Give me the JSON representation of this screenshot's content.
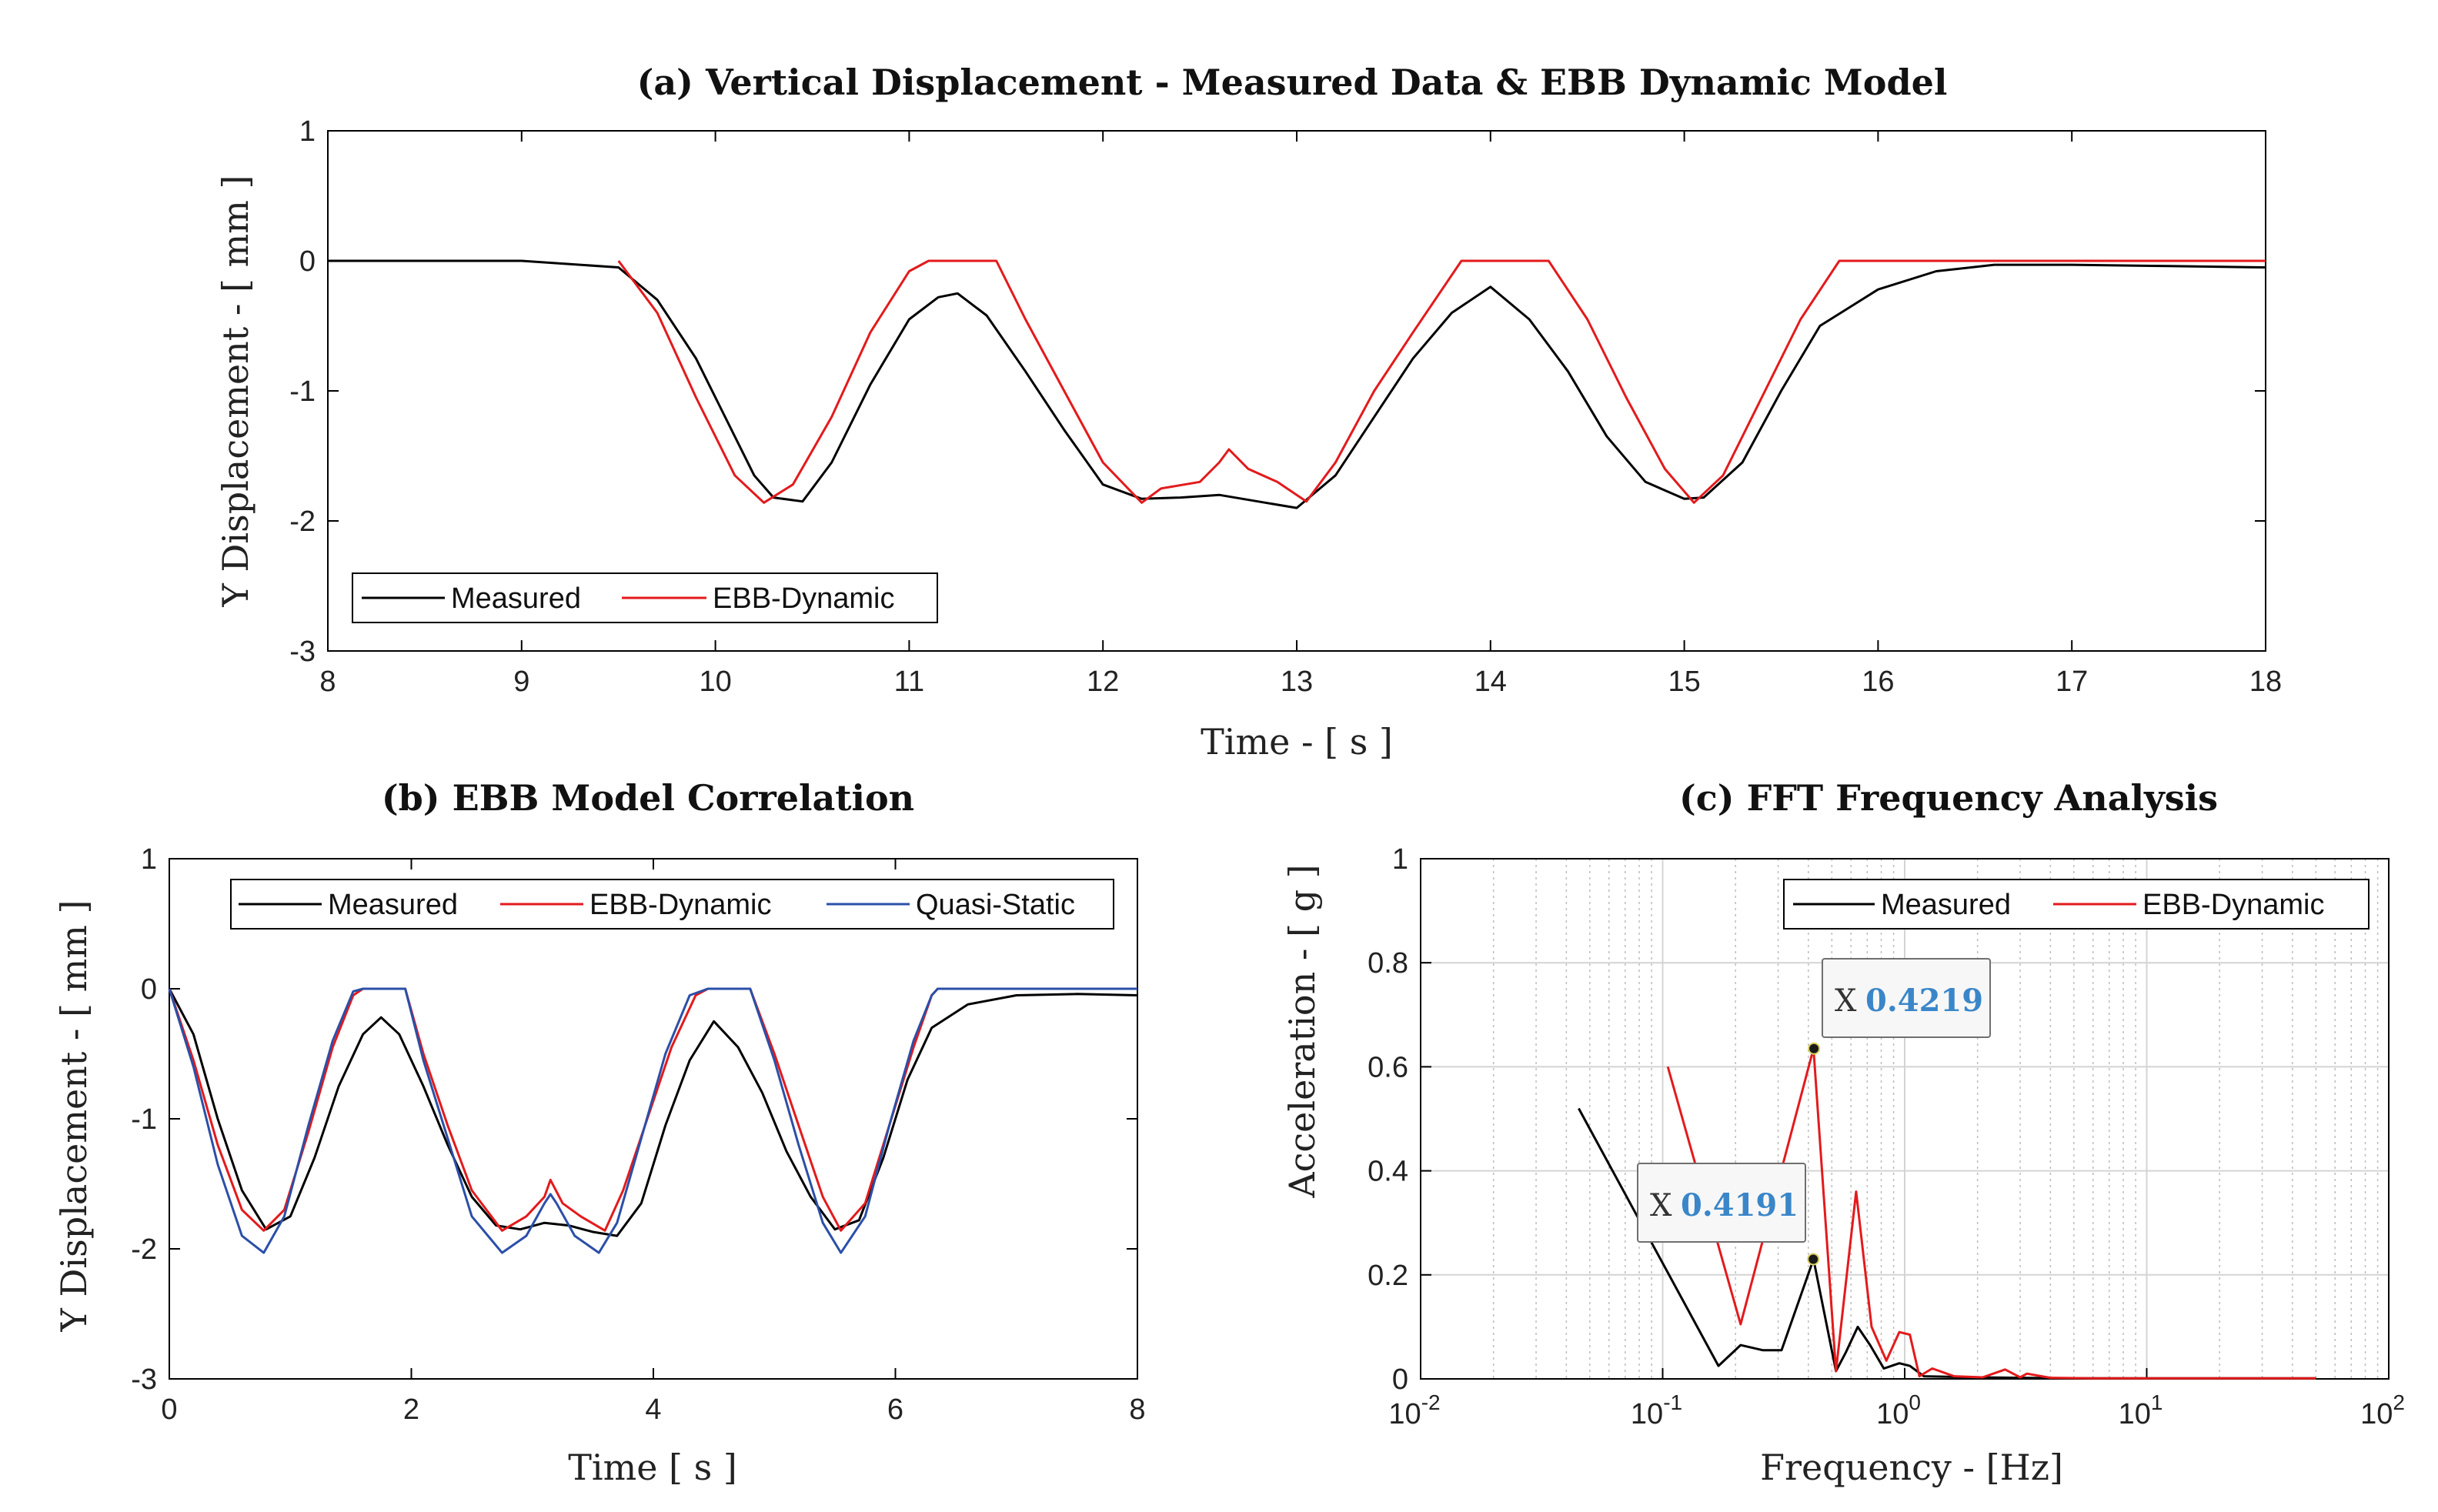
{
  "colors": {
    "measured": "#000000",
    "ebb": "#e31a1c",
    "quasi": "#2b4fa8",
    "datatip_value": "#3a86c8"
  },
  "chart_data": [
    {
      "id": "a",
      "type": "line",
      "title": "(a) Vertical Displacement - Measured Data & EBB Dynamic Model",
      "xlabel": "Time - [ s ]",
      "ylabel": "Y Displacement - [ mm ]",
      "xlim": [
        8,
        18
      ],
      "ylim": [
        -3,
        1
      ],
      "xticks": [
        "8",
        "9",
        "10",
        "11",
        "12",
        "13",
        "14",
        "15",
        "16",
        "17",
        "18"
      ],
      "yticks": [
        "1",
        "0",
        "-1",
        "-2",
        "-3"
      ],
      "grid": false,
      "legend": {
        "placement": "bottom-left",
        "orientation": "horizontal",
        "entries": [
          "Measured",
          "EBB-Dynamic"
        ]
      },
      "series": [
        {
          "name": "Measured",
          "color_key": "measured",
          "x": [
            8,
            9,
            9.5,
            9.7,
            9.9,
            10.0,
            10.2,
            10.3,
            10.45,
            10.6,
            10.8,
            11.0,
            11.15,
            11.25,
            11.4,
            11.6,
            11.8,
            12.0,
            12.2,
            12.4,
            12.6,
            12.8,
            13.0,
            13.2,
            13.4,
            13.6,
            13.8,
            14.0,
            14.2,
            14.4,
            14.6,
            14.8,
            15.0,
            15.1,
            15.3,
            15.5,
            15.7,
            16.0,
            16.3,
            16.6,
            17.0,
            17.5,
            18.0
          ],
          "y": [
            0,
            0,
            -0.05,
            -0.3,
            -0.75,
            -1.05,
            -1.65,
            -1.82,
            -1.85,
            -1.55,
            -0.95,
            -0.45,
            -0.28,
            -0.25,
            -0.42,
            -0.85,
            -1.3,
            -1.72,
            -1.83,
            -1.82,
            -1.8,
            -1.85,
            -1.9,
            -1.65,
            -1.2,
            -0.75,
            -0.4,
            -0.2,
            -0.45,
            -0.85,
            -1.35,
            -1.7,
            -1.83,
            -1.82,
            -1.55,
            -1.0,
            -0.5,
            -0.22,
            -0.08,
            -0.03,
            -0.03,
            -0.04,
            -0.05
          ]
        },
        {
          "name": "EBB-Dynamic",
          "color_key": "ebb",
          "x": [
            9.5,
            9.7,
            9.9,
            10.1,
            10.25,
            10.4,
            10.6,
            10.8,
            11.0,
            11.1,
            11.2,
            11.45,
            11.6,
            11.8,
            12.0,
            12.2,
            12.3,
            12.5,
            12.6,
            12.65,
            12.75,
            12.9,
            13.05,
            13.2,
            13.4,
            13.6,
            13.85,
            14.3,
            14.5,
            14.7,
            14.9,
            15.05,
            15.2,
            15.4,
            15.6,
            15.8,
            16.2,
            18.0
          ],
          "y": [
            0,
            -0.4,
            -1.05,
            -1.65,
            -1.86,
            -1.72,
            -1.2,
            -0.55,
            -0.08,
            0,
            0,
            0,
            -0.45,
            -1.0,
            -1.55,
            -1.86,
            -1.75,
            -1.7,
            -1.55,
            -1.45,
            -1.6,
            -1.7,
            -1.85,
            -1.55,
            -1.0,
            -0.55,
            0,
            0,
            -0.45,
            -1.05,
            -1.6,
            -1.86,
            -1.65,
            -1.05,
            -0.45,
            0,
            0,
            0
          ]
        }
      ]
    },
    {
      "id": "b",
      "type": "line",
      "title": "(b) EBB Model Correlation",
      "xlabel": "Time [ s ]",
      "ylabel": "Y Displacement - [ mm ]",
      "xlim": [
        0,
        8
      ],
      "ylim": [
        -3,
        1
      ],
      "xticks": [
        "0",
        "2",
        "4",
        "6",
        "8"
      ],
      "yticks": [
        "1",
        "0",
        "-1",
        "-2",
        "-3"
      ],
      "grid": false,
      "legend": {
        "placement": "top",
        "orientation": "horizontal",
        "entries": [
          "Measured",
          "EBB-Dynamic",
          "Quasi-Static"
        ]
      },
      "series": [
        {
          "name": "Measured",
          "color_key": "measured",
          "x": [
            0,
            0.2,
            0.4,
            0.6,
            0.8,
            1.0,
            1.2,
            1.4,
            1.6,
            1.75,
            1.9,
            2.1,
            2.3,
            2.5,
            2.7,
            2.9,
            3.1,
            3.3,
            3.5,
            3.7,
            3.9,
            4.1,
            4.3,
            4.5,
            4.7,
            4.9,
            5.1,
            5.3,
            5.5,
            5.7,
            5.9,
            6.1,
            6.3,
            6.6,
            7.0,
            7.5,
            8.0
          ],
          "y": [
            0,
            -0.35,
            -1.0,
            -1.55,
            -1.85,
            -1.75,
            -1.3,
            -0.75,
            -0.35,
            -0.22,
            -0.35,
            -0.75,
            -1.2,
            -1.6,
            -1.82,
            -1.85,
            -1.8,
            -1.82,
            -1.87,
            -1.9,
            -1.65,
            -1.05,
            -0.55,
            -0.25,
            -0.45,
            -0.8,
            -1.25,
            -1.6,
            -1.85,
            -1.78,
            -1.3,
            -0.7,
            -0.3,
            -0.12,
            -0.05,
            -0.04,
            -0.05
          ]
        },
        {
          "name": "EBB-Dynamic",
          "color_key": "ebb",
          "x": [
            0,
            0.2,
            0.4,
            0.6,
            0.78,
            0.95,
            1.15,
            1.35,
            1.52,
            1.6,
            1.95,
            2.1,
            2.3,
            2.5,
            2.75,
            2.95,
            3.1,
            3.15,
            3.25,
            3.4,
            3.6,
            3.75,
            3.95,
            4.15,
            4.35,
            4.45,
            4.8,
            5.0,
            5.2,
            5.4,
            5.55,
            5.75,
            5.95,
            6.15,
            6.3,
            6.35,
            8.0
          ],
          "y": [
            0,
            -0.55,
            -1.2,
            -1.7,
            -1.86,
            -1.7,
            -1.1,
            -0.45,
            -0.05,
            0,
            0,
            -0.5,
            -1.05,
            -1.55,
            -1.86,
            -1.75,
            -1.6,
            -1.47,
            -1.65,
            -1.75,
            -1.86,
            -1.55,
            -1.0,
            -0.45,
            -0.05,
            0,
            0,
            -0.5,
            -1.05,
            -1.6,
            -1.86,
            -1.65,
            -1.05,
            -0.45,
            -0.05,
            0,
            0
          ]
        },
        {
          "name": "Quasi-Static",
          "color_key": "quasi",
          "x": [
            0,
            0.2,
            0.4,
            0.6,
            0.78,
            0.95,
            1.15,
            1.35,
            1.52,
            1.6,
            1.95,
            2.1,
            2.3,
            2.5,
            2.75,
            2.95,
            3.1,
            3.15,
            3.2,
            3.35,
            3.55,
            3.7,
            3.9,
            4.1,
            4.3,
            4.45,
            4.8,
            5.0,
            5.2,
            5.4,
            5.55,
            5.75,
            5.95,
            6.15,
            6.3,
            6.35,
            8.0
          ],
          "y": [
            0,
            -0.6,
            -1.35,
            -1.9,
            -2.03,
            -1.75,
            -1.05,
            -0.4,
            -0.02,
            0,
            0,
            -0.55,
            -1.15,
            -1.75,
            -2.03,
            -1.9,
            -1.65,
            -1.58,
            -1.65,
            -1.9,
            -2.03,
            -1.8,
            -1.15,
            -0.5,
            -0.05,
            0,
            0,
            -0.55,
            -1.2,
            -1.8,
            -2.03,
            -1.75,
            -1.05,
            -0.4,
            -0.05,
            0,
            0
          ]
        }
      ]
    },
    {
      "id": "c",
      "type": "line",
      "title": "(c) FFT Frequency Analysis",
      "xlabel": "Frequency - [Hz]",
      "ylabel": "Acceleration - [ g ]",
      "xscale": "log",
      "xlim": [
        0.01,
        100
      ],
      "ylim": [
        0,
        1
      ],
      "xticks": [
        {
          "base": "10",
          "exp": "-2"
        },
        {
          "base": "10",
          "exp": "-1"
        },
        {
          "base": "10",
          "exp": "0"
        },
        {
          "base": "10",
          "exp": "1"
        },
        {
          "base": "10",
          "exp": "2"
        }
      ],
      "yticks": [
        "1",
        "0.8",
        "0.6",
        "0.4",
        "0.2",
        "0"
      ],
      "grid": true,
      "legend": {
        "placement": "top-right",
        "orientation": "horizontal",
        "entries": [
          "Measured",
          "EBB-Dynamic"
        ]
      },
      "datatips": [
        {
          "x_label": "X",
          "value": "0.4219",
          "px": 0.4219,
          "py": 0.635,
          "target_series": "EBB-Dynamic"
        },
        {
          "x_label": "X",
          "value": "0.4191",
          "px": 0.4191,
          "py": 0.23,
          "target_series": "Measured"
        }
      ],
      "series": [
        {
          "name": "Measured",
          "color_key": "measured",
          "x": [
            0.045,
            0.17,
            0.21,
            0.26,
            0.31,
            0.42,
            0.52,
            0.57,
            0.64,
            0.72,
            0.82,
            0.95,
            1.05,
            1.2,
            1.5,
            2,
            3,
            5,
            10,
            20,
            50
          ],
          "y": [
            0.52,
            0.025,
            0.065,
            0.055,
            0.055,
            0.23,
            0.015,
            0.05,
            0.1,
            0.065,
            0.02,
            0.03,
            0.025,
            0.005,
            0.004,
            0.003,
            0.002,
            0.001,
            0.001,
            0.001,
            0.001
          ]
        },
        {
          "name": "EBB-Dynamic",
          "color_key": "ebb",
          "x": [
            0.105,
            0.21,
            0.42,
            0.52,
            0.63,
            0.73,
            0.84,
            0.95,
            1.05,
            1.15,
            1.3,
            1.6,
            2.1,
            2.6,
            3.0,
            3.2,
            4,
            6,
            10,
            20,
            50
          ],
          "y": [
            0.6,
            0.105,
            0.635,
            0.015,
            0.36,
            0.1,
            0.035,
            0.09,
            0.085,
            0.005,
            0.02,
            0.005,
            0.003,
            0.018,
            0.003,
            0.01,
            0.002,
            0.001,
            0.001,
            0.001,
            0.001
          ]
        }
      ]
    }
  ]
}
